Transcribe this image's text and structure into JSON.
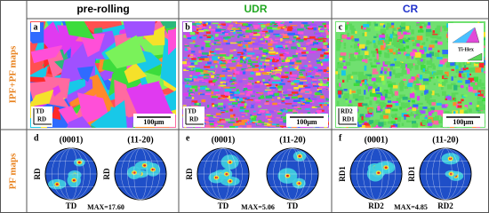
{
  "row_labels": [
    "IPF+PF maps",
    "PF maps"
  ],
  "columns": [
    {
      "title": "pre-rolling",
      "map": {
        "letter": "a",
        "axis_v": "TD",
        "axis_h": "RD",
        "scale": "100μm"
      },
      "pf": {
        "letter": "d",
        "max": "MAX=17.60",
        "figures": [
          {
            "plane": "(0001)",
            "side": "RD",
            "bottom": "TD"
          },
          {
            "plane": "(11-20)",
            "side": "RD"
          }
        ]
      }
    },
    {
      "title": "UDR",
      "map": {
        "letter": "b",
        "axis_v": "TD",
        "axis_h": "RD",
        "scale": "100μm"
      },
      "pf": {
        "letter": "e",
        "max": "MAX=5.06",
        "figures": [
          {
            "plane": "(0001)",
            "side": "RD",
            "bottom": "TD"
          },
          {
            "plane": "(11-20)",
            "bottom": "TD"
          }
        ]
      }
    },
    {
      "title": "CR",
      "map": {
        "letter": "c",
        "axis_v": "RD2",
        "axis_h": "RD1",
        "scale": "100μm",
        "legend": "Ti-Hex"
      },
      "pf": {
        "letter": "f",
        "max": "MAX=4.85",
        "figures": [
          {
            "plane": "(0001)",
            "side": "RD1",
            "bottom": "RD2"
          },
          {
            "plane": "(11-20)",
            "side": "RD1",
            "bottom": "RD2"
          }
        ]
      }
    }
  ]
}
